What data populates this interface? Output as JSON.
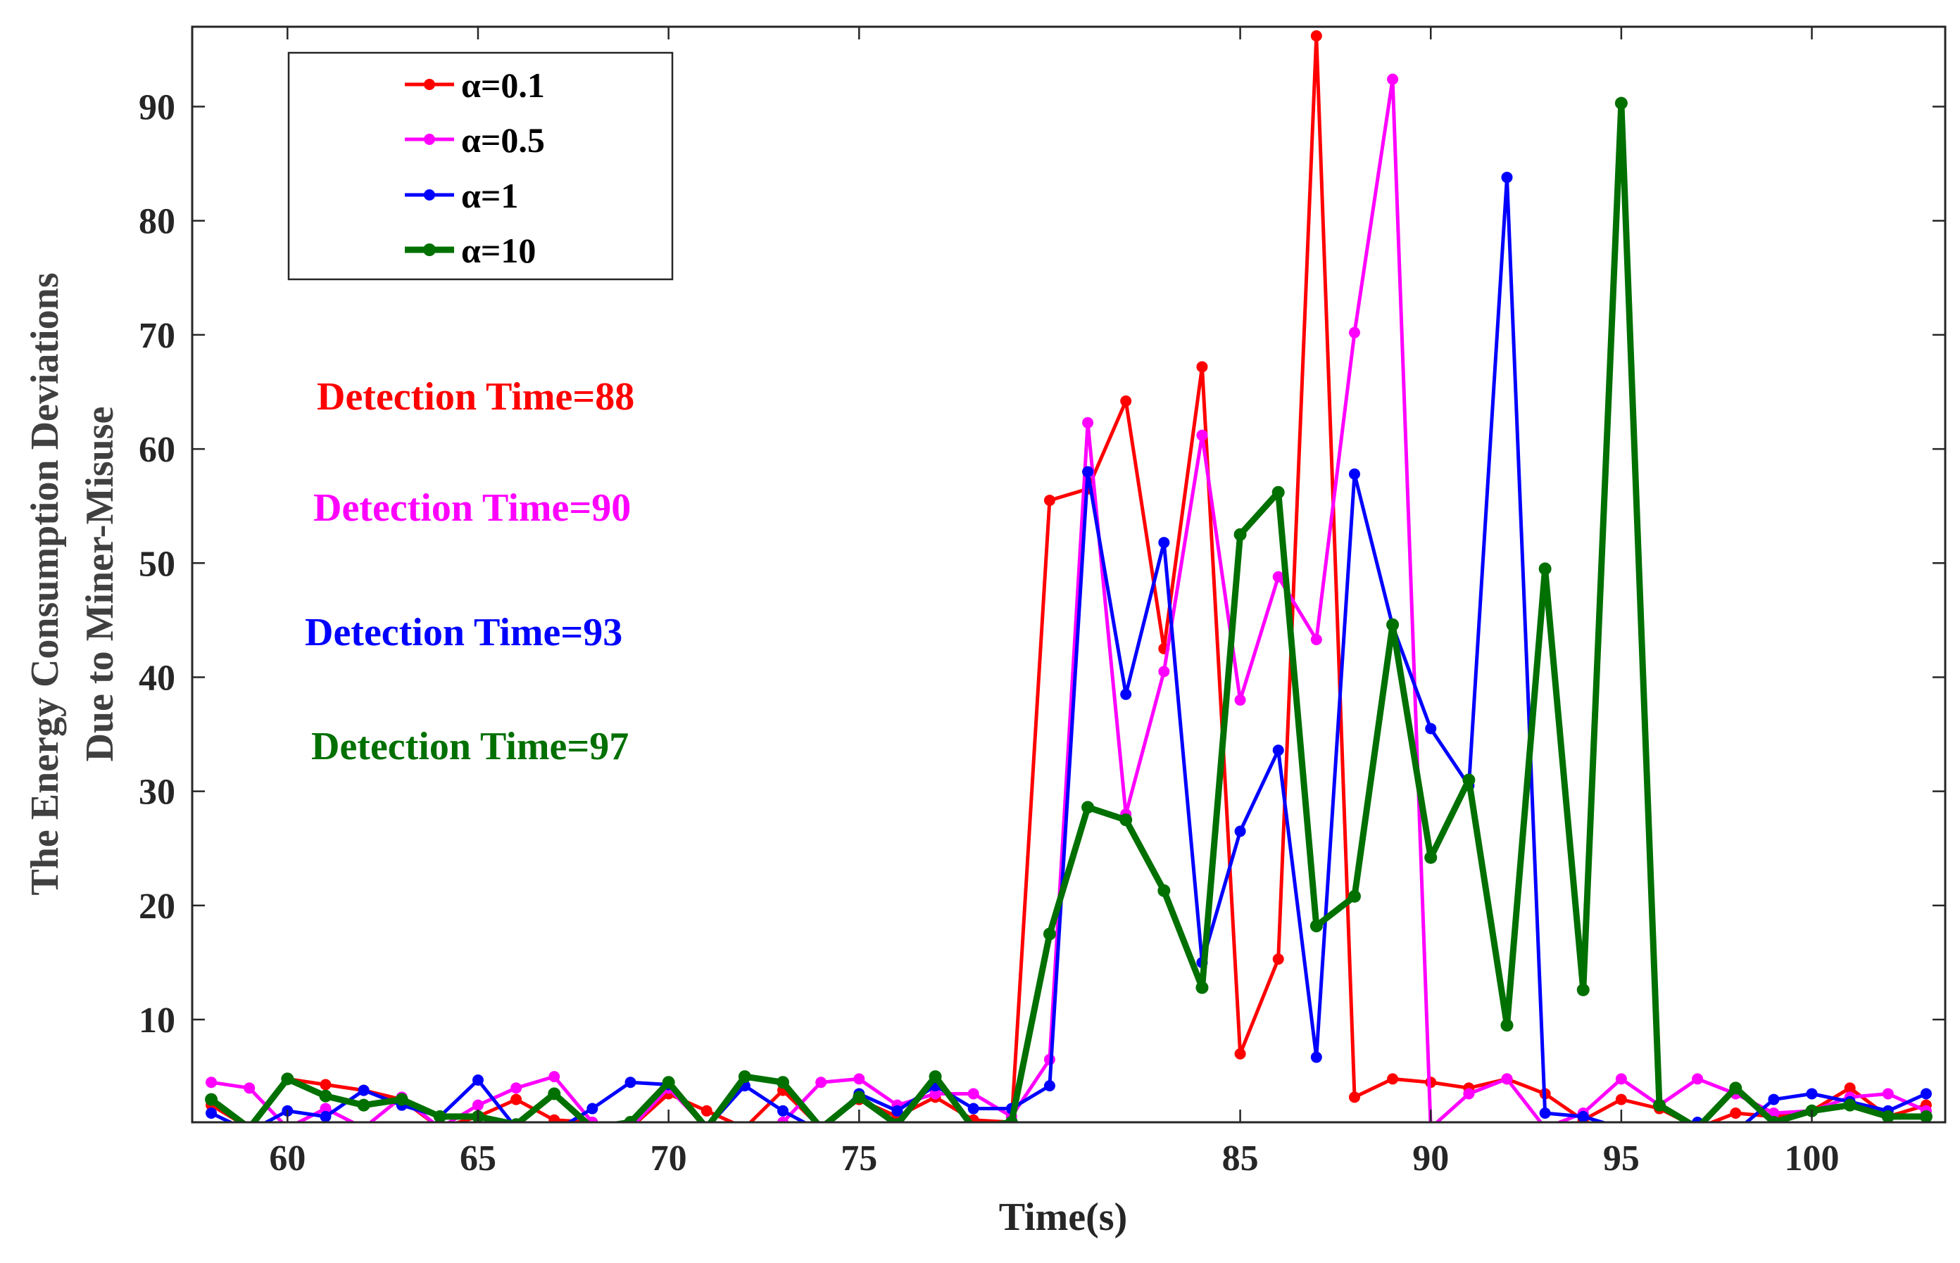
{
  "chart_data": {
    "type": "line",
    "title": "",
    "xlabel": "Time(s)",
    "ylabel_line1": "The Energy Consumption Deviations",
    "ylabel_line2": "Due to Miner-Misuse",
    "xlim": [
      57.5,
      103.5
    ],
    "ylim": [
      1,
      97
    ],
    "x_ticks": [
      60,
      65,
      70,
      75,
      85,
      90,
      95,
      100
    ],
    "y_ticks": [
      10,
      20,
      30,
      40,
      50,
      60,
      70,
      80,
      90
    ],
    "legend_position": "top-left",
    "x": [
      58,
      59,
      60,
      61,
      62,
      63,
      64,
      65,
      66,
      67,
      68,
      69,
      70,
      71,
      72,
      73,
      74,
      75,
      76,
      77,
      78,
      79,
      80,
      81,
      82,
      83,
      84,
      85,
      86,
      87,
      88,
      89,
      90,
      91,
      92,
      93,
      94,
      95,
      96,
      97,
      98,
      99,
      100,
      101,
      102,
      103
    ],
    "series": [
      {
        "name": "α=0.1",
        "color": "#ff0000",
        "values": [
          2.5,
          0.5,
          4.8,
          4.3,
          3.8,
          3.0,
          0.5,
          1.5,
          3.0,
          1.2,
          1.0,
          0.5,
          3.5,
          2.0,
          0.5,
          3.8,
          0.5,
          3.0,
          1.5,
          3.2,
          1.2,
          1.0,
          55.5,
          56.5,
          64.2,
          42.5,
          67.2,
          7.0,
          15.3,
          96.2,
          3.2,
          4.8,
          4.5,
          4.0,
          4.8,
          3.5,
          1.2,
          3.0,
          2.2,
          0.5,
          1.8,
          1.5,
          2.0,
          4.0,
          1.5,
          2.5
        ]
      },
      {
        "name": "α=0.5",
        "color": "#ff00ff",
        "values": [
          4.5,
          4.0,
          0.5,
          2.2,
          0.5,
          3.2,
          0.5,
          2.5,
          4.0,
          5.0,
          1.0,
          0.5,
          4.0,
          0.5,
          0.5,
          1.0,
          4.5,
          4.8,
          2.5,
          3.5,
          3.5,
          1.5,
          6.5,
          62.3,
          28.0,
          40.5,
          61.2,
          38.0,
          48.8,
          43.3,
          70.2,
          92.4,
          0.5,
          3.5,
          4.8,
          0.5,
          1.8,
          4.8,
          2.5,
          4.8,
          3.5,
          1.8,
          2.0,
          3.2,
          3.5,
          2.0
        ]
      },
      {
        "name": "α=1",
        "color": "#0000ff",
        "values": [
          1.8,
          0.2,
          2.0,
          1.5,
          3.8,
          2.5,
          1.5,
          4.7,
          0.5,
          0.2,
          2.2,
          4.5,
          4.3,
          0.5,
          4.2,
          2.0,
          0.2,
          3.5,
          2.0,
          4.2,
          2.2,
          2.2,
          4.2,
          58.0,
          38.5,
          51.8,
          15.0,
          26.5,
          33.6,
          6.7,
          57.8,
          44.5,
          35.5,
          30.5,
          83.8,
          1.8,
          1.5,
          0.5,
          0.5,
          1.0,
          0.2,
          3.0,
          3.5,
          2.8,
          2.0,
          3.5
        ]
      },
      {
        "name": "α=10",
        "color": "#007000",
        "values": [
          3.0,
          0.5,
          4.8,
          3.3,
          2.5,
          3.0,
          1.5,
          1.5,
          0.8,
          3.5,
          0.5,
          1.0,
          4.5,
          0.5,
          5.0,
          4.5,
          0.5,
          3.2,
          0.8,
          5.0,
          0.5,
          1.0,
          17.5,
          28.6,
          27.5,
          21.3,
          12.8,
          52.5,
          56.2,
          18.2,
          20.8,
          44.6,
          24.2,
          31.0,
          9.5,
          49.5,
          12.6,
          90.3,
          2.5,
          0.5,
          4.0,
          1.0,
          2.0,
          2.5,
          1.5,
          1.5
        ]
      }
    ],
    "annotations": [
      {
        "text": "Detection Time=88",
        "color": "#ff0000"
      },
      {
        "text": "Detection Time=90",
        "color": "#ff00ff"
      },
      {
        "text": "Detection Time=93",
        "color": "#0000ff"
      },
      {
        "text": "Detection Time=97",
        "color": "#007000"
      }
    ]
  }
}
